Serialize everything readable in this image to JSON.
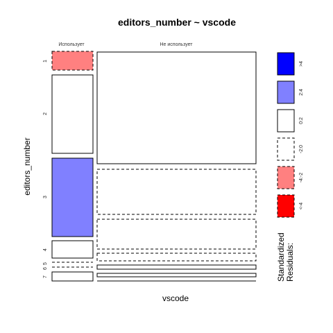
{
  "chart_data": {
    "type": "mosaic",
    "title": "editors_number ~ vscode",
    "xlabel": "vscode",
    "ylabel": "editors_number",
    "columns": [
      "Использует",
      "Не использует"
    ],
    "rows": [
      "1",
      "2",
      "3",
      "4",
      "5",
      "6",
      "7"
    ],
    "cells": [
      {
        "col": "Использует",
        "row": "1",
        "residual_class": "-4:-2"
      },
      {
        "col": "Использует",
        "row": "2",
        "residual_class": "0:2"
      },
      {
        "col": "Использует",
        "row": "3",
        "residual_class": "2:4"
      },
      {
        "col": "Использует",
        "row": "4",
        "residual_class": "0:2"
      },
      {
        "col": "Использует",
        "row": "5",
        "residual_class": "-2:0"
      },
      {
        "col": "Использует",
        "row": "6",
        "residual_class": "-2:0"
      },
      {
        "col": "Использует",
        "row": "7",
        "residual_class": "0:2"
      },
      {
        "col": "Не использует",
        "row": "1",
        "residual_class": "0:2"
      },
      {
        "col": "Не использует",
        "row": "2",
        "residual_class": "-2:0"
      },
      {
        "col": "Не использует",
        "row": "3",
        "residual_class": "-2:0"
      },
      {
        "col": "Не использует",
        "row": "4",
        "residual_class": "-2:0"
      },
      {
        "col": "Не использует",
        "row": "5",
        "residual_class": "0:2"
      },
      {
        "col": "Не использует",
        "row": "6",
        "residual_class": "0:2"
      },
      {
        "col": "Не использует",
        "row": "7",
        "residual_class": "0:2"
      }
    ],
    "legend": {
      "title_line1": "Standardized",
      "title_line2": "Residuals:",
      "placement": "right",
      "entries": [
        {
          "label": ">4",
          "fill": "#0000ff",
          "dashed": false
        },
        {
          "label": "2:4",
          "fill": "#8080ff",
          "dashed": false
        },
        {
          "label": "0:2",
          "fill": "#ffffff",
          "dashed": false
        },
        {
          "label": "-2:0",
          "fill": "#ffffff",
          "dashed": true
        },
        {
          "label": "-4:-2",
          "fill": "#ff8080",
          "dashed": true
        },
        {
          "label": "<-4",
          "fill": "#ff0000",
          "dashed": true
        }
      ]
    }
  }
}
